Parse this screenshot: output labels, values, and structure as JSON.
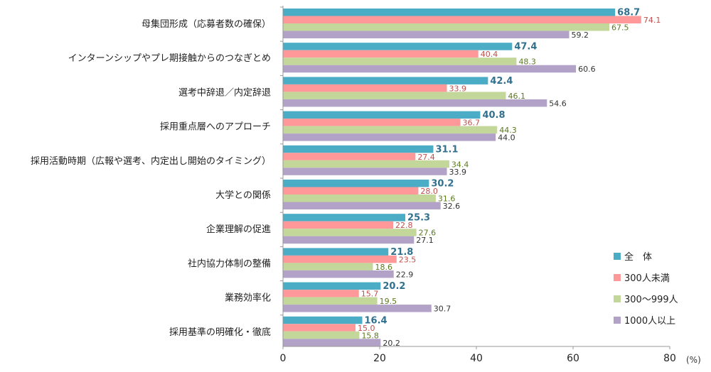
{
  "chart_data": {
    "type": "bar",
    "orientation": "horizontal",
    "categories": [
      "母集団形成（応募者数の確保）",
      "インターンシップやプレ期接触からのつなぎとめ",
      "選考中辞退／内定辞退",
      "採用重点層へのアプローチ",
      "採用活動時期（広報や選考、内定出し開始のタイミング）",
      "大学との関係",
      "企業理解の促進",
      "社内協力体制の整備",
      "業務効率化",
      "採用基準の明確化・徹底"
    ],
    "series": [
      {
        "name": "全　体",
        "color": "#4bacc6",
        "label_color": "#31708f",
        "bold": true,
        "values": [
          68.7,
          47.4,
          42.4,
          40.8,
          31.1,
          30.2,
          25.3,
          21.8,
          20.2,
          16.4
        ]
      },
      {
        "name": "300人未満",
        "color": "#ff9999",
        "label_color": "#c0504d",
        "bold": false,
        "values": [
          74.1,
          40.4,
          33.9,
          36.7,
          27.4,
          28.0,
          22.8,
          23.5,
          15.7,
          15.0
        ]
      },
      {
        "name": "300～999人",
        "color": "#c4d79b",
        "label_color": "#5b7a1f",
        "bold": false,
        "values": [
          67.5,
          48.3,
          46.1,
          44.3,
          34.4,
          31.6,
          27.6,
          18.6,
          19.5,
          15.8
        ]
      },
      {
        "name": "1000人以上",
        "color": "#b3a2c7",
        "label_color": "#333333",
        "bold": false,
        "values": [
          59.2,
          60.6,
          54.6,
          44.0,
          33.9,
          32.6,
          27.1,
          22.9,
          30.7,
          20.2
        ]
      }
    ],
    "xlim": [
      0,
      80
    ],
    "xticks": [
      "0",
      "20",
      "40",
      "60",
      "80"
    ],
    "unit": "(%)",
    "legend_position": "bottom-right",
    "grid": false
  }
}
